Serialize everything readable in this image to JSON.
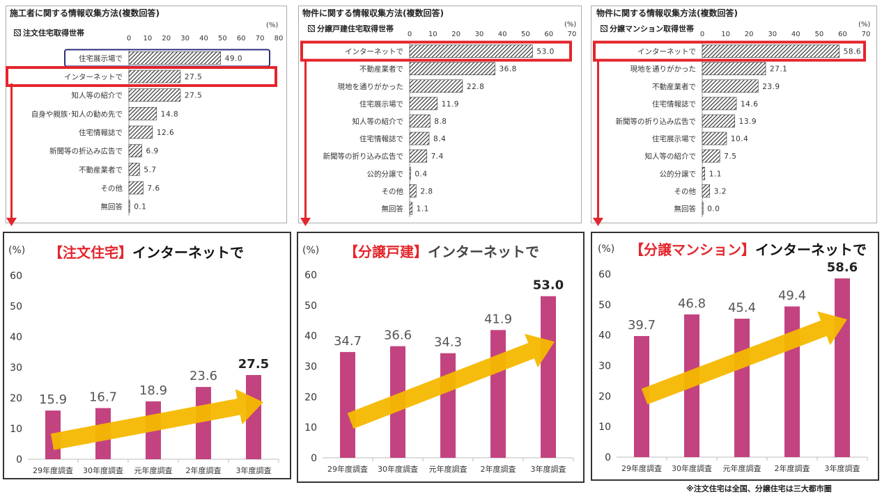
{
  "colors": {
    "highlight_red": "#e3262c",
    "highlight_navy": "#2b2f7c",
    "bar_magenta": "#c2437f",
    "trend_arrow": "#f5b800",
    "hatch": "#333333"
  },
  "icons": {
    "trend": "trend-arrow-icon",
    "pointer": "down-arrow-icon"
  },
  "note": "※注文住宅は全国、分譲住宅は三大都市圏",
  "chart_data": [
    {
      "type": "bar",
      "orientation": "horizontal",
      "title": "施工者に関する情報収集方法(複数回答)",
      "subtitle": "注文住宅取得世帯",
      "unit": "(%)",
      "xlim": [
        0,
        80
      ],
      "ticks": [
        "0",
        "10",
        "20",
        "30",
        "40",
        "50",
        "60",
        "70",
        "80"
      ],
      "categories": [
        "住宅展示場で",
        "インターネットで",
        "知人等の紹介で",
        "自身や親族･知人の勧め先で",
        "住宅情報誌で",
        "新聞等の折込み広告で",
        "不動産業者で",
        "その他",
        "無回答"
      ],
      "values": [
        49.0,
        27.5,
        27.5,
        14.8,
        12.6,
        6.9,
        5.7,
        7.6,
        0.1
      ],
      "labels": [
        "49.0",
        "27.5",
        "27.5",
        "14.8",
        "12.6",
        "6.9",
        "5.7",
        "7.6",
        "0.1"
      ],
      "highlight_red": 1,
      "highlight_navy": 0
    },
    {
      "type": "bar",
      "orientation": "horizontal",
      "title": "物件に関する情報収集方法(複数回答)",
      "subtitle": "分譲戸建住宅取得世帯",
      "unit": "(%)",
      "xlim": [
        0,
        70
      ],
      "ticks": [
        "0",
        "10",
        "20",
        "30",
        "40",
        "50",
        "60",
        "70"
      ],
      "categories": [
        "インターネットで",
        "不動産業者で",
        "現地を通りがかった",
        "住宅展示場で",
        "知人等の紹介で",
        "住宅情報誌で",
        "新聞等の折り込み広告で",
        "公的分譲で",
        "その他",
        "無回答"
      ],
      "values": [
        53.0,
        36.8,
        22.8,
        11.9,
        8.8,
        8.4,
        7.4,
        0.4,
        2.8,
        1.1
      ],
      "labels": [
        "53.0",
        "36.8",
        "22.8",
        "11.9",
        "8.8",
        "8.4",
        "7.4",
        "0.4",
        "2.8",
        "1.1"
      ],
      "highlight_red": 0
    },
    {
      "type": "bar",
      "orientation": "horizontal",
      "title": "物件に関する情報収集方法(複数回答)",
      "subtitle": "分譲マンション取得世帯",
      "unit": "(%)",
      "xlim": [
        0,
        70
      ],
      "ticks": [
        "0",
        "10",
        "20",
        "30",
        "40",
        "50",
        "60",
        "70"
      ],
      "categories": [
        "インターネットで",
        "現地を通りがかった",
        "不動産業者で",
        "住宅情報誌で",
        "新聞等の折り込み広告で",
        "住宅展示場で",
        "知人等の紹介で",
        "公的分譲で",
        "その他",
        "無回答"
      ],
      "values": [
        58.6,
        27.1,
        23.9,
        14.6,
        13.9,
        10.4,
        7.5,
        1.1,
        3.2,
        0.0
      ],
      "labels": [
        "58.6",
        "27.1",
        "23.9",
        "14.6",
        "13.9",
        "10.4",
        "7.5",
        "1.1",
        "3.2",
        "0.0"
      ],
      "highlight_red": 0
    },
    {
      "type": "bar",
      "title_bracket": "【注文住宅】",
      "title_rest": "インターネットで",
      "unit": "(%)",
      "categories": [
        "29年度調査",
        "30年度調査",
        "元年度調査",
        "2年度調査",
        "3年度調査"
      ],
      "values": [
        15.9,
        16.7,
        18.9,
        23.6,
        27.5
      ],
      "labels": [
        "15.9",
        "16.7",
        "18.9",
        "23.6",
        "27.5"
      ],
      "ylim": [
        0,
        60
      ],
      "yticks": [
        "0",
        "10",
        "20",
        "30",
        "40",
        "50",
        "60"
      ]
    },
    {
      "type": "bar",
      "title_bracket": "【分譲戸建】",
      "title_rest": "インターネットで",
      "unit": "(%)",
      "categories": [
        "29年度調査",
        "30年度調査",
        "元年度調査",
        "2年度調査",
        "3年度調査"
      ],
      "values": [
        34.7,
        36.6,
        34.3,
        41.9,
        53.0
      ],
      "labels": [
        "34.7",
        "36.6",
        "34.3",
        "41.9",
        "53.0"
      ],
      "ylim": [
        0,
        60
      ],
      "yticks": [
        "0",
        "10",
        "20",
        "30",
        "40",
        "50",
        "60"
      ]
    },
    {
      "type": "bar",
      "title_bracket": "【分譲マンション】",
      "title_rest": "インターネットで",
      "unit": "(%)",
      "categories": [
        "29年度調査",
        "30年度調査",
        "元年度調査",
        "2年度調査",
        "3年度調査"
      ],
      "values": [
        39.7,
        46.8,
        45.4,
        49.4,
        58.6
      ],
      "labels": [
        "39.7",
        "46.8",
        "45.4",
        "49.4",
        "58.6"
      ],
      "ylim": [
        0,
        60
      ],
      "yticks": [
        "0",
        "10",
        "20",
        "30",
        "40",
        "50",
        "60"
      ]
    }
  ]
}
